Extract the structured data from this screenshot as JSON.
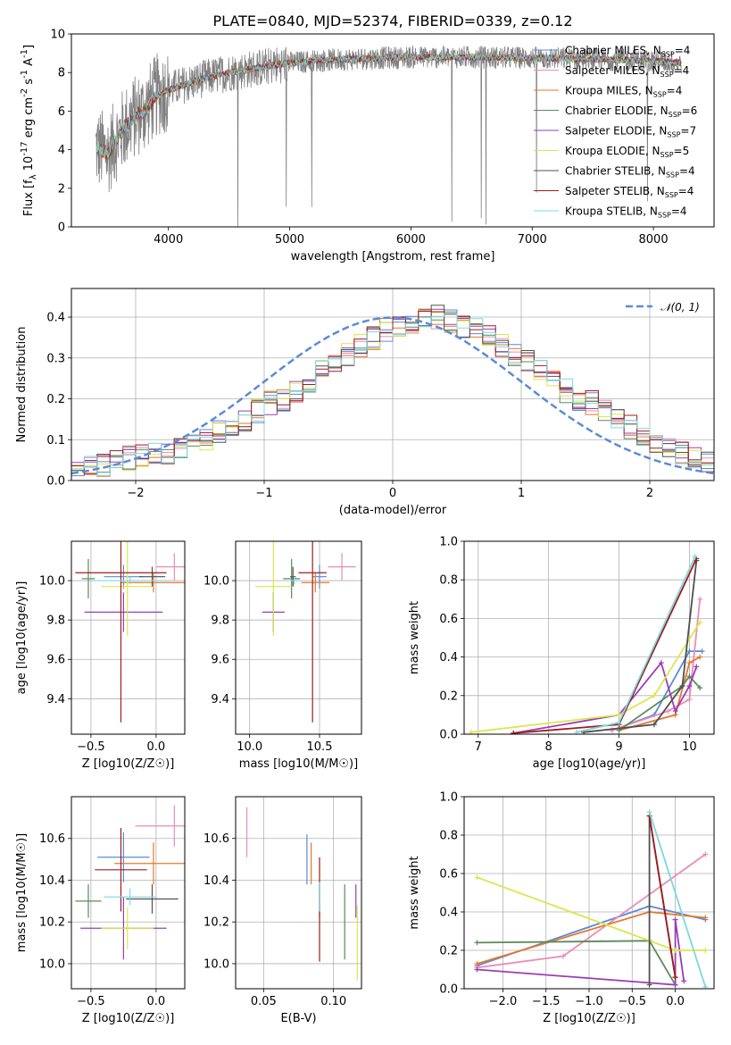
{
  "figure_title": "PLATE=0840, MJD=52374, FIBERID=0339, z=0.12",
  "models": [
    {
      "name": "Chabrier MILES",
      "nssp": "4",
      "color": "#5b8bd6"
    },
    {
      "name": "Salpeter MILES",
      "nssp": "4",
      "color": "#e88db8"
    },
    {
      "name": "Kroupa MILES",
      "nssp": "4",
      "color": "#e5782a"
    },
    {
      "name": "Chabrier ELODIE",
      "nssp": "6",
      "color": "#5c8a5c"
    },
    {
      "name": "Salpeter ELODIE",
      "nssp": "7",
      "color": "#9b3db8"
    },
    {
      "name": "Kroupa ELODIE",
      "nssp": "5",
      "color": "#d9e84a"
    },
    {
      "name": "Chabrier STELIB",
      "nssp": "4",
      "color": "#505050"
    },
    {
      "name": "Salpeter STELIB",
      "nssp": "4",
      "color": "#a01c1c"
    },
    {
      "name": "Kroupa STELIB",
      "nssp": "4",
      "color": "#7dd8e0"
    }
  ],
  "chart_data": [
    {
      "id": "spectrum",
      "type": "line",
      "xlabel": "wavelength [Angstrom, rest frame]",
      "ylabel": "Flux [f_λ 10^-17 erg cm^-2 s^-1 A^-1]",
      "xlim": [
        3200,
        8500
      ],
      "ylim": [
        0,
        10
      ],
      "xticks": [
        4000,
        5000,
        6000,
        7000,
        8000
      ],
      "yticks": [
        0,
        2,
        4,
        6,
        8,
        10
      ],
      "legend": "top-right",
      "continuum": {
        "x": [
          3400,
          3500,
          3600,
          3700,
          3800,
          3900,
          4000,
          4100,
          4200,
          4300,
          4500,
          4800,
          5000,
          5200,
          5500,
          6000,
          6500,
          7000,
          7500,
          8000,
          8230
        ],
        "y": [
          4.1,
          3.8,
          4.8,
          5.6,
          6.0,
          6.8,
          7.1,
          7.3,
          7.5,
          7.7,
          8.0,
          8.3,
          8.5,
          8.6,
          8.7,
          8.8,
          8.8,
          8.75,
          8.7,
          8.6,
          8.5
        ]
      },
      "data_range": [
        3400,
        8230
      ]
    },
    {
      "id": "residuals",
      "type": "step",
      "xlabel": "(data-model)/error",
      "ylabel": "Normed distribution",
      "xlim": [
        -2.5,
        2.5
      ],
      "ylim": [
        0,
        0.47
      ],
      "xticks": [
        -2,
        -1,
        0,
        1,
        2
      ],
      "yticks": [
        0.0,
        0.1,
        0.2,
        0.3,
        0.4
      ],
      "reference": {
        "name": "𝒩(0, 1)",
        "mean": 0,
        "std": 1
      },
      "legend": "top-right",
      "bin_width": 0.1,
      "bin_start": -2.5,
      "histogram": [
        0.03,
        0.035,
        0.04,
        0.05,
        0.055,
        0.06,
        0.065,
        0.07,
        0.08,
        0.09,
        0.1,
        0.12,
        0.13,
        0.15,
        0.17,
        0.19,
        0.2,
        0.22,
        0.24,
        0.27,
        0.29,
        0.31,
        0.33,
        0.35,
        0.37,
        0.38,
        0.39,
        0.4,
        0.4,
        0.39,
        0.38,
        0.37,
        0.35,
        0.33,
        0.31,
        0.29,
        0.27,
        0.24,
        0.22,
        0.2,
        0.19,
        0.17,
        0.15,
        0.13,
        0.11,
        0.09,
        0.08,
        0.07,
        0.06,
        0.05
      ]
    },
    {
      "id": "age_vs_Z",
      "type": "errorbar",
      "xlabel": "Z [log10(Z/Z☉)]",
      "ylabel": "age [log10(age/yr)]",
      "xlim": [
        -0.65,
        0.22
      ],
      "ylim": [
        9.22,
        10.2
      ],
      "xticks": [
        -0.5,
        0.0
      ],
      "yticks": [
        9.4,
        9.6,
        9.8,
        10.0
      ],
      "points": [
        {
          "model": 0,
          "x": -0.25,
          "xerr": 0.15,
          "y": 10.02,
          "yerr": 0.06
        },
        {
          "model": 1,
          "x": 0.14,
          "xerr": 0.14,
          "y": 10.07,
          "yerr": 0.07
        },
        {
          "model": 2,
          "x": -0.02,
          "xerr": 0.25,
          "y": 9.99,
          "yerr": 0.05
        },
        {
          "model": 3,
          "x": -0.52,
          "xerr": 0.05,
          "y": 10.01,
          "yerr": 0.1
        },
        {
          "model": 4,
          "x": -0.25,
          "xerr": 0.3,
          "y": 9.84,
          "yerr": 0.1
        },
        {
          "model": 5,
          "x": -0.22,
          "xerr": 0.2,
          "y": 9.97,
          "yerr": 0.25
        },
        {
          "model": 6,
          "x": -0.03,
          "xerr": 0.1,
          "y": 10.02,
          "yerr": 0.05
        },
        {
          "model": 7,
          "x": -0.27,
          "xerr": 0.35,
          "y": 10.04,
          "yerr": 0.76
        },
        {
          "model": 8,
          "x": -0.2,
          "xerr": 0.3,
          "y": 10.0,
          "yerr": 0.02
        }
      ]
    },
    {
      "id": "age_vs_mass",
      "type": "errorbar",
      "xlabel": "mass [log10(M/M☉)]",
      "ylabel": "",
      "xlim": [
        9.9,
        10.8
      ],
      "ylim": [
        9.22,
        10.2
      ],
      "xticks": [
        10.0,
        10.5
      ],
      "yticks": [
        9.4,
        9.6,
        9.8,
        10.0
      ],
      "points": [
        {
          "model": 0,
          "x": 10.5,
          "xerr": 0.05,
          "y": 10.02,
          "yerr": 0.06
        },
        {
          "model": 1,
          "x": 10.66,
          "xerr": 0.1,
          "y": 10.07,
          "yerr": 0.07
        },
        {
          "model": 2,
          "x": 10.47,
          "xerr": 0.1,
          "y": 9.99,
          "yerr": 0.05
        },
        {
          "model": 3,
          "x": 10.3,
          "xerr": 0.06,
          "y": 10.01,
          "yerr": 0.1
        },
        {
          "model": 4,
          "x": 10.17,
          "xerr": 0.08,
          "y": 9.84,
          "yerr": 0.1
        },
        {
          "model": 5,
          "x": 10.17,
          "xerr": 0.13,
          "y": 9.97,
          "yerr": 0.25
        },
        {
          "model": 6,
          "x": 10.31,
          "xerr": 0.02,
          "y": 10.02,
          "yerr": 0.05
        },
        {
          "model": 7,
          "x": 10.45,
          "xerr": 0.1,
          "y": 10.04,
          "yerr": 0.76
        },
        {
          "model": 8,
          "x": 10.32,
          "xerr": 0.03,
          "y": 10.0,
          "yerr": 0.02
        }
      ]
    },
    {
      "id": "weight_vs_age",
      "type": "line",
      "xlabel": "age [log10(age/yr)]",
      "ylabel": "mass weight",
      "xlim": [
        6.8,
        10.35
      ],
      "ylim": [
        0,
        1
      ],
      "xticks": [
        7,
        8,
        9,
        10
      ],
      "yticks": [
        0.0,
        0.2,
        0.4,
        0.6,
        0.8,
        1.0
      ],
      "series": [
        {
          "model": 0,
          "x": [
            8.9,
            9.5,
            10.0,
            10.18
          ],
          "y": [
            0.02,
            0.1,
            0.43,
            0.43
          ]
        },
        {
          "model": 1,
          "x": [
            8.9,
            9.7,
            10.0,
            10.15
          ],
          "y": [
            0.02,
            0.12,
            0.18,
            0.7
          ]
        },
        {
          "model": 2,
          "x": [
            9.0,
            9.8,
            10.0,
            10.15
          ],
          "y": [
            0.02,
            0.1,
            0.37,
            0.4
          ]
        },
        {
          "model": 3,
          "x": [
            9.0,
            9.9,
            10.0,
            10.15
          ],
          "y": [
            0.02,
            0.25,
            0.3,
            0.24
          ]
        },
        {
          "model": 4,
          "x": [
            7.5,
            9.0,
            9.6,
            9.8,
            10.0,
            10.1
          ],
          "y": [
            0.005,
            0.1,
            0.37,
            0.12,
            0.25,
            0.35
          ]
        },
        {
          "model": 5,
          "x": [
            6.9,
            9.0,
            9.5,
            10.15
          ],
          "y": [
            0.01,
            0.1,
            0.2,
            0.58
          ]
        },
        {
          "model": 6,
          "x": [
            8.5,
            9.5,
            9.9,
            10.1
          ],
          "y": [
            0.01,
            0.05,
            0.25,
            0.9
          ]
        },
        {
          "model": 7,
          "x": [
            7.5,
            9.0,
            10.1
          ],
          "y": [
            0.005,
            0.05,
            0.91
          ]
        },
        {
          "model": 8,
          "x": [
            8.4,
            9.0,
            10.08
          ],
          "y": [
            0.01,
            0.06,
            0.92
          ]
        }
      ]
    },
    {
      "id": "mass_vs_Z",
      "type": "errorbar",
      "xlabel": "Z [log10(Z/Z☉)]",
      "ylabel": "mass [log10(M/M☉)]",
      "xlim": [
        -0.65,
        0.22
      ],
      "ylim": [
        9.88,
        10.8
      ],
      "xticks": [
        -0.5,
        0.0
      ],
      "yticks": [
        10.0,
        10.2,
        10.4,
        10.6
      ],
      "points": [
        {
          "model": 0,
          "x": -0.25,
          "xerr": 0.2,
          "y": 10.51,
          "yerr": 0.12
        },
        {
          "model": 1,
          "x": 0.14,
          "xerr": 0.3,
          "y": 10.66,
          "yerr": 0.1
        },
        {
          "model": 2,
          "x": -0.02,
          "xerr": 0.3,
          "y": 10.48,
          "yerr": 0.1
        },
        {
          "model": 3,
          "x": -0.52,
          "xerr": 0.1,
          "y": 10.3,
          "yerr": 0.08
        },
        {
          "model": 4,
          "x": -0.25,
          "xerr": 0.33,
          "y": 10.17,
          "yerr": 0.15
        },
        {
          "model": 5,
          "x": -0.22,
          "xerr": 0.2,
          "y": 10.17,
          "yerr": 0.1
        },
        {
          "model": 6,
          "x": -0.03,
          "xerr": 0.2,
          "y": 10.31,
          "yerr": 0.07
        },
        {
          "model": 7,
          "x": -0.27,
          "xerr": 0.2,
          "y": 10.45,
          "yerr": 0.2
        },
        {
          "model": 8,
          "x": -0.2,
          "xerr": 0.2,
          "y": 10.32,
          "yerr": 0.04
        }
      ]
    },
    {
      "id": "mass_vs_ebv",
      "type": "errorbar",
      "xlabel": "E(B-V)",
      "ylabel": "",
      "xlim": [
        0.03,
        0.12
      ],
      "ylim": [
        9.88,
        10.8
      ],
      "xticks": [
        0.05,
        0.1
      ],
      "yticks": [
        10.0,
        10.2,
        10.4,
        10.6
      ],
      "points": [
        {
          "model": 0,
          "x": 0.081,
          "xerr": 0,
          "y": 10.5,
          "yerr": 0.12
        },
        {
          "model": 1,
          "x": 0.038,
          "xerr": 0,
          "y": 10.63,
          "yerr": 0.12
        },
        {
          "model": 2,
          "x": 0.084,
          "xerr": 0,
          "y": 10.48,
          "yerr": 0.1
        },
        {
          "model": 3,
          "x": 0.108,
          "xerr": 0,
          "y": 10.2,
          "yerr": 0.18
        },
        {
          "model": 4,
          "x": 0.116,
          "xerr": 0,
          "y": 10.3,
          "yerr": 0.08
        },
        {
          "model": 5,
          "x": 0.117,
          "xerr": 0,
          "y": 10.1,
          "yerr": 0.18
        },
        {
          "model": 6,
          "x": 0.09,
          "xerr": 0,
          "y": 10.3,
          "yerr": 0.08
        },
        {
          "model": 7,
          "x": 0.09,
          "xerr": 0,
          "y": 10.26,
          "yerr": 0.25
        },
        {
          "model": 8,
          "x": 0.09,
          "xerr": 0,
          "y": 10.32,
          "yerr": 0.07
        }
      ]
    },
    {
      "id": "weight_vs_Z",
      "type": "line",
      "xlabel": "Z [log10(Z/Z☉)]",
      "ylabel": "mass weight",
      "xlim": [
        -2.45,
        0.45
      ],
      "ylim": [
        0,
        1
      ],
      "xticks": [
        -2.0,
        -1.5,
        -1.0,
        -0.5,
        0.0
      ],
      "yticks": [
        0.0,
        0.2,
        0.4,
        0.6,
        0.8,
        1.0
      ],
      "series": [
        {
          "model": 0,
          "x": [
            -2.3,
            -0.3,
            0.35
          ],
          "y": [
            0.12,
            0.43,
            0.36
          ]
        },
        {
          "model": 1,
          "x": [
            -2.3,
            -1.3,
            0.35
          ],
          "y": [
            0.11,
            0.17,
            0.7
          ]
        },
        {
          "model": 2,
          "x": [
            -2.3,
            -0.3,
            0.35
          ],
          "y": [
            0.13,
            0.4,
            0.37
          ]
        },
        {
          "model": 3,
          "x": [
            -2.3,
            -0.3,
            0.0
          ],
          "y": [
            0.24,
            0.25,
            0.02
          ]
        },
        {
          "model": 4,
          "x": [
            -2.3,
            0.0,
            0.0,
            0.1
          ],
          "y": [
            0.1,
            0.02,
            0.36,
            0.04
          ]
        },
        {
          "model": 5,
          "x": [
            -2.3,
            0.0,
            0.35
          ],
          "y": [
            0.58,
            0.2,
            0.2
          ]
        },
        {
          "model": 6,
          "x": [
            -0.3,
            -0.3,
            0.0
          ],
          "y": [
            0.02,
            0.9,
            0.06
          ]
        },
        {
          "model": 7,
          "x": [
            -0.3,
            0.0
          ],
          "y": [
            0.9,
            0.06
          ]
        },
        {
          "model": 8,
          "x": [
            -0.3,
            0.35
          ],
          "y": [
            0.92,
            0.01
          ]
        }
      ]
    }
  ]
}
